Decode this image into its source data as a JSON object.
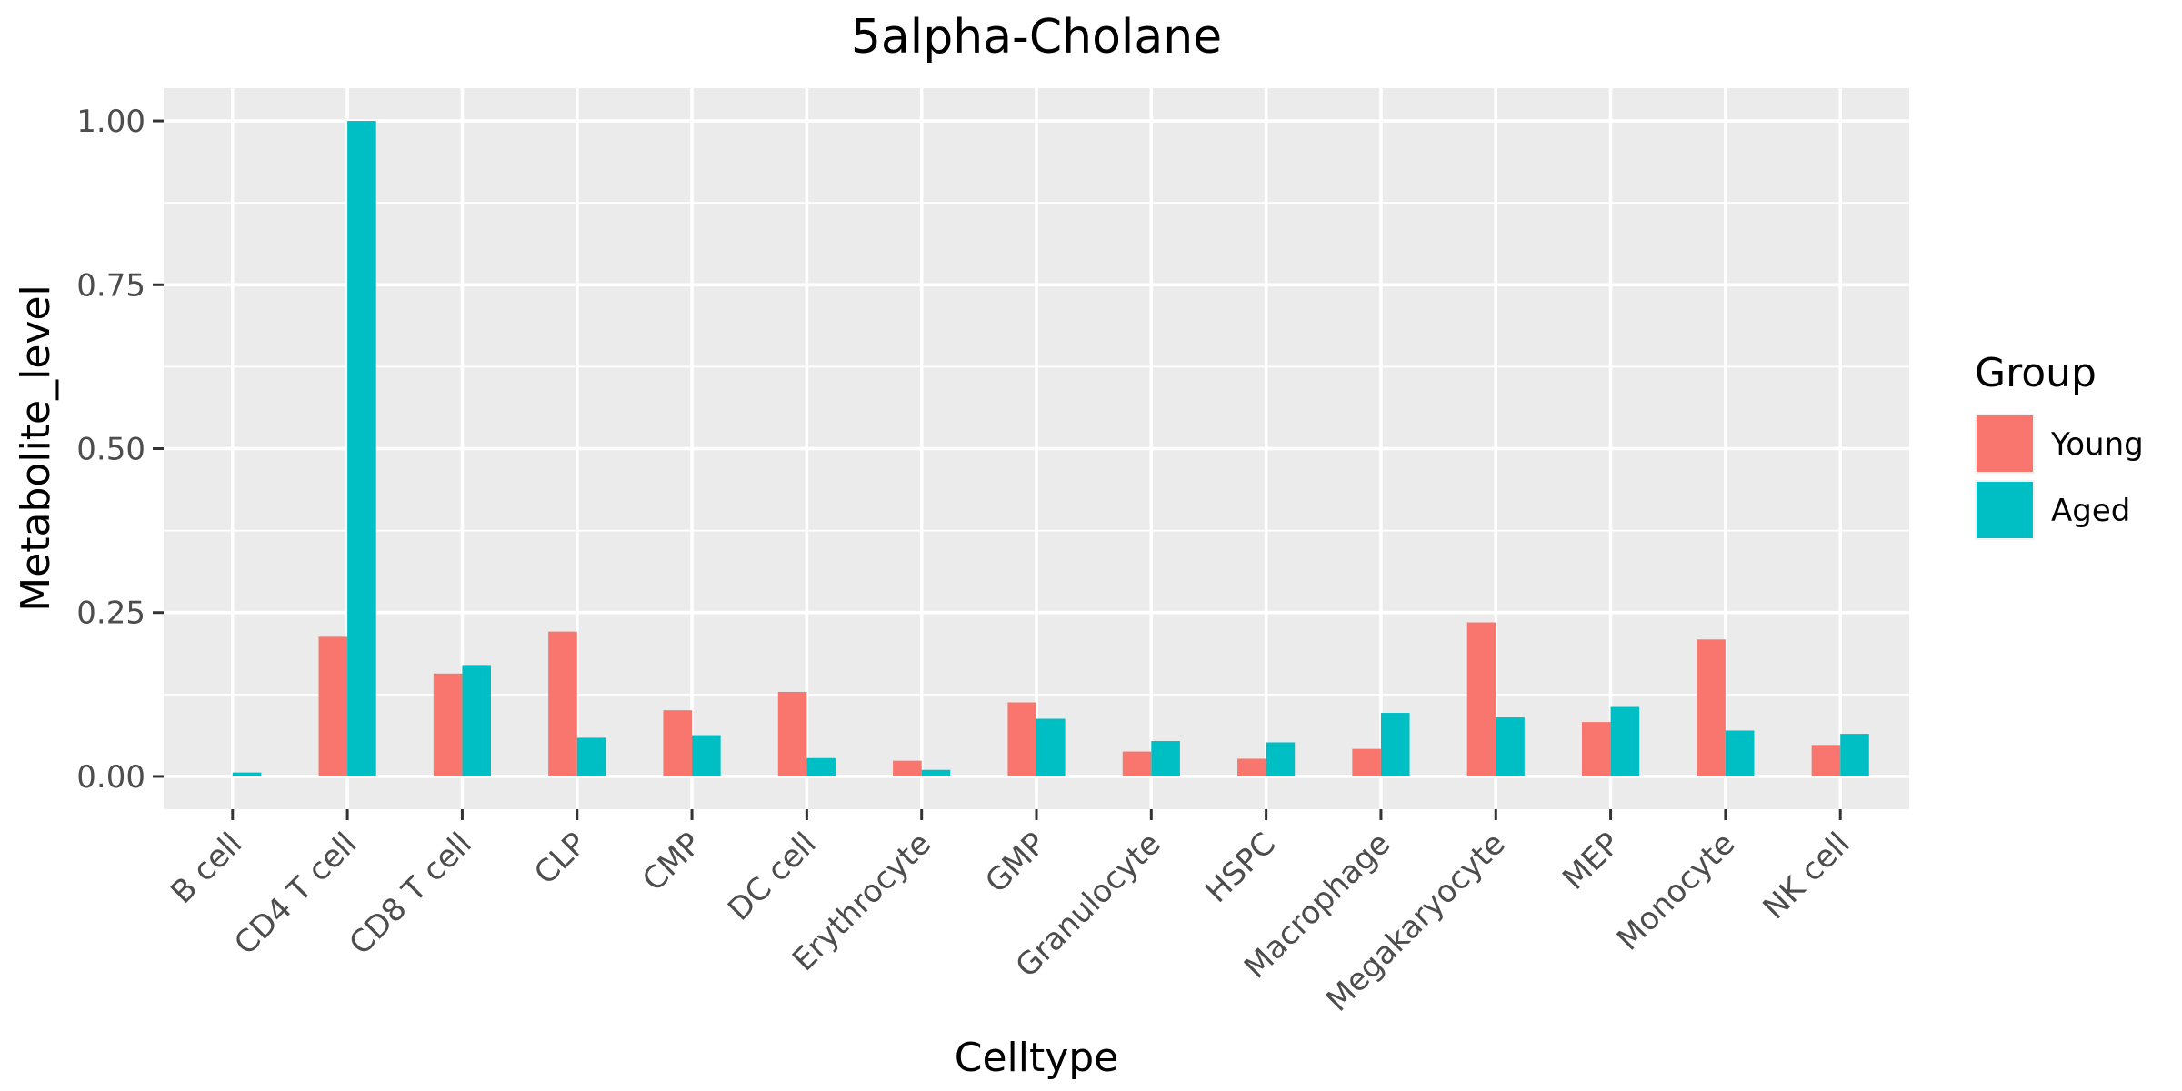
{
  "chart_data": {
    "type": "bar",
    "title": "5alpha-Cholane",
    "xlabel": "Celltype",
    "ylabel": "Metabolite_level",
    "ylim": [
      -0.05,
      1.05
    ],
    "y_ticks": [
      0.0,
      0.25,
      0.5,
      0.75,
      1.0
    ],
    "y_tick_labels": [
      "0.00",
      "0.25",
      "0.50",
      "0.75",
      "1.00"
    ],
    "grid": true,
    "legend_position": "right",
    "legend_title": "Group",
    "categories": [
      "B cell",
      "CD4 T cell",
      "CD8 T cell",
      "CLP",
      "CMP",
      "DC cell",
      "Erythrocyte",
      "GMP",
      "Granulocyte",
      "HSPC",
      "Macrophage",
      "Megakaryocyte",
      "MEP",
      "Monocyte",
      "NK cell"
    ],
    "series": [
      {
        "name": "Young",
        "color": "#F8766D",
        "values": [
          null,
          0.213,
          0.157,
          0.221,
          0.101,
          0.129,
          0.024,
          0.113,
          0.038,
          0.027,
          0.042,
          0.235,
          0.083,
          0.209,
          0.048
        ]
      },
      {
        "name": "Aged",
        "color": "#00BFC4",
        "values": [
          0.006,
          1.0,
          0.17,
          0.059,
          0.063,
          0.028,
          0.01,
          0.088,
          0.054,
          0.052,
          0.097,
          0.09,
          0.106,
          0.07,
          0.065
        ]
      }
    ]
  }
}
